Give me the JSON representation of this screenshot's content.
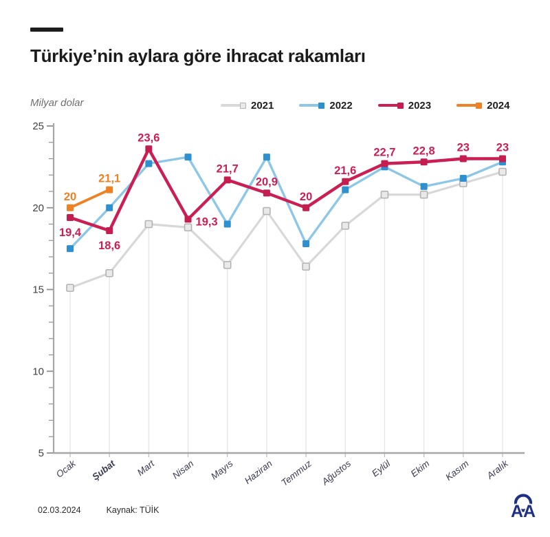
{
  "page": {
    "title": "Türkiye’nin aylara göre ihracat rakamları"
  },
  "footer": {
    "date": "02.03.2024",
    "source": "Kaynak: TÜİK",
    "logo": "anadolu-ajansi-aa-logo"
  },
  "chart_data": {
    "type": "line",
    "title": "Türkiye’nin aylara göre ihracat rakamları",
    "xlabel": "",
    "ylabel": "Milyar dolar",
    "ylim": [
      5,
      25
    ],
    "yticks": [
      5,
      10,
      15,
      20,
      25
    ],
    "minor_tick_step": 1,
    "grid": "vertical-droplines",
    "legend_position": "top-right",
    "categories": [
      "Ocak",
      "Şubat",
      "Mart",
      "Nisan",
      "Mayıs",
      "Haziran",
      "Temmuz",
      "Ağustos",
      "Eylül",
      "Ekim",
      "Kasım",
      "Aralık"
    ],
    "highlighted_category": "Şubat",
    "series": [
      {
        "name": "2021",
        "values": [
          15.1,
          16.0,
          19.0,
          18.8,
          16.5,
          19.8,
          16.4,
          18.9,
          20.8,
          20.8,
          21.5,
          22.2
        ],
        "line_color": "#d8d8d8",
        "marker_color": "#e9e9e9",
        "marker_border_color": "#b2b2b2"
      },
      {
        "name": "2022",
        "values": [
          17.5,
          20.0,
          22.7,
          23.1,
          19.0,
          23.1,
          17.8,
          21.1,
          22.5,
          21.3,
          21.8,
          22.8
        ],
        "line_color": "#8cc7e8",
        "marker_color": "#2f90cf",
        "marker_border_color": "#2f90cf"
      },
      {
        "name": "2023",
        "values": [
          19.4,
          18.6,
          23.6,
          19.3,
          21.7,
          20.9,
          20,
          21.6,
          22.7,
          22.8,
          23,
          23
        ],
        "point_labels": [
          "19,4",
          "18,6",
          "23,6",
          "19,3",
          "21,7",
          "20,9",
          "20",
          "21,6",
          "22,7",
          "22,8",
          "23",
          "23"
        ],
        "label_placements": [
          "below",
          "below",
          "above",
          "right",
          "above",
          "above",
          "above",
          "above",
          "above",
          "above",
          "above",
          "above"
        ],
        "line_color": "#cb1e53",
        "marker_color": "#c41d50",
        "marker_border_color": "#c41d50"
      },
      {
        "name": "2024",
        "values": [
          20,
          21.1
        ],
        "point_labels": [
          "20",
          "21,1"
        ],
        "label_placements": [
          "above",
          "above"
        ],
        "line_color": "#ee8123",
        "marker_color": "#ee8123",
        "marker_border_color": "#ee8123"
      }
    ]
  }
}
